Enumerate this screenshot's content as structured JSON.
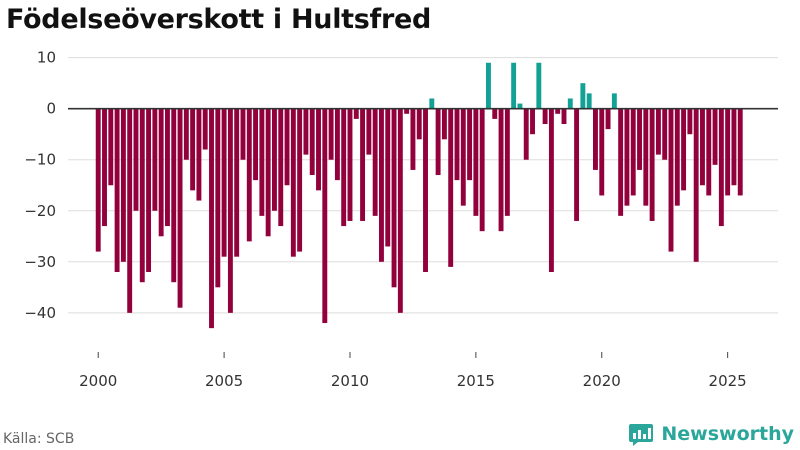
{
  "title": "Födelseöverskott i Hultsfred",
  "source": "Källa: SCB",
  "brand": "Newsworthy",
  "colors": {
    "positive": "#13a196",
    "negative": "#92013c",
    "grid": "#dddddd",
    "zero": "#333333"
  },
  "chart_data": {
    "type": "bar",
    "title": "Födelseöverskott i Hultsfred",
    "xlabel": "",
    "ylabel": "",
    "x_start": 2000.0,
    "x_step": 0.25,
    "xlim": [
      1998.8,
      2027.0
    ],
    "ylim": [
      -46.5,
      11.5
    ],
    "y_ticks": [
      10,
      0,
      -10,
      -20,
      -30,
      -40
    ],
    "y_tick_labels": [
      "10",
      "0",
      "−10",
      "−20",
      "−30",
      "−40"
    ],
    "x_ticks": [
      2000,
      2005,
      2010,
      2015,
      2020,
      2025
    ],
    "x_tick_labels": [
      "2000",
      "2005",
      "2010",
      "2015",
      "2020",
      "2025"
    ],
    "grid": true,
    "values": [
      -28,
      -23,
      -15,
      -32,
      -30,
      -40,
      -20,
      -34,
      -32,
      -20,
      -25,
      -23,
      -34,
      -39,
      -10,
      -16,
      -18,
      -8,
      -43,
      -35,
      -29,
      -40,
      -29,
      -10,
      -26,
      -14,
      -21,
      -25,
      -20,
      -23,
      -15,
      -29,
      -28,
      -9,
      -13,
      -16,
      -42,
      -10,
      -14,
      -23,
      -22,
      -2,
      -22,
      -9,
      -21,
      -30,
      -27,
      -35,
      -40,
      -1,
      -12,
      -6,
      -32,
      2,
      -13,
      -6,
      -31,
      -14,
      -19,
      -14,
      -21,
      -24,
      9,
      -2,
      -24,
      -21,
      9,
      1,
      -10,
      -5,
      9,
      -3,
      -32,
      -1,
      -3,
      2,
      -22,
      5,
      3,
      -12,
      -17,
      -4,
      3,
      -21,
      -19,
      -17,
      -12,
      -19,
      -22,
      -9,
      -10,
      -28,
      -19,
      -16,
      -5,
      -30,
      -15,
      -17,
      -11,
      -23,
      -17,
      -15,
      -17
    ]
  }
}
